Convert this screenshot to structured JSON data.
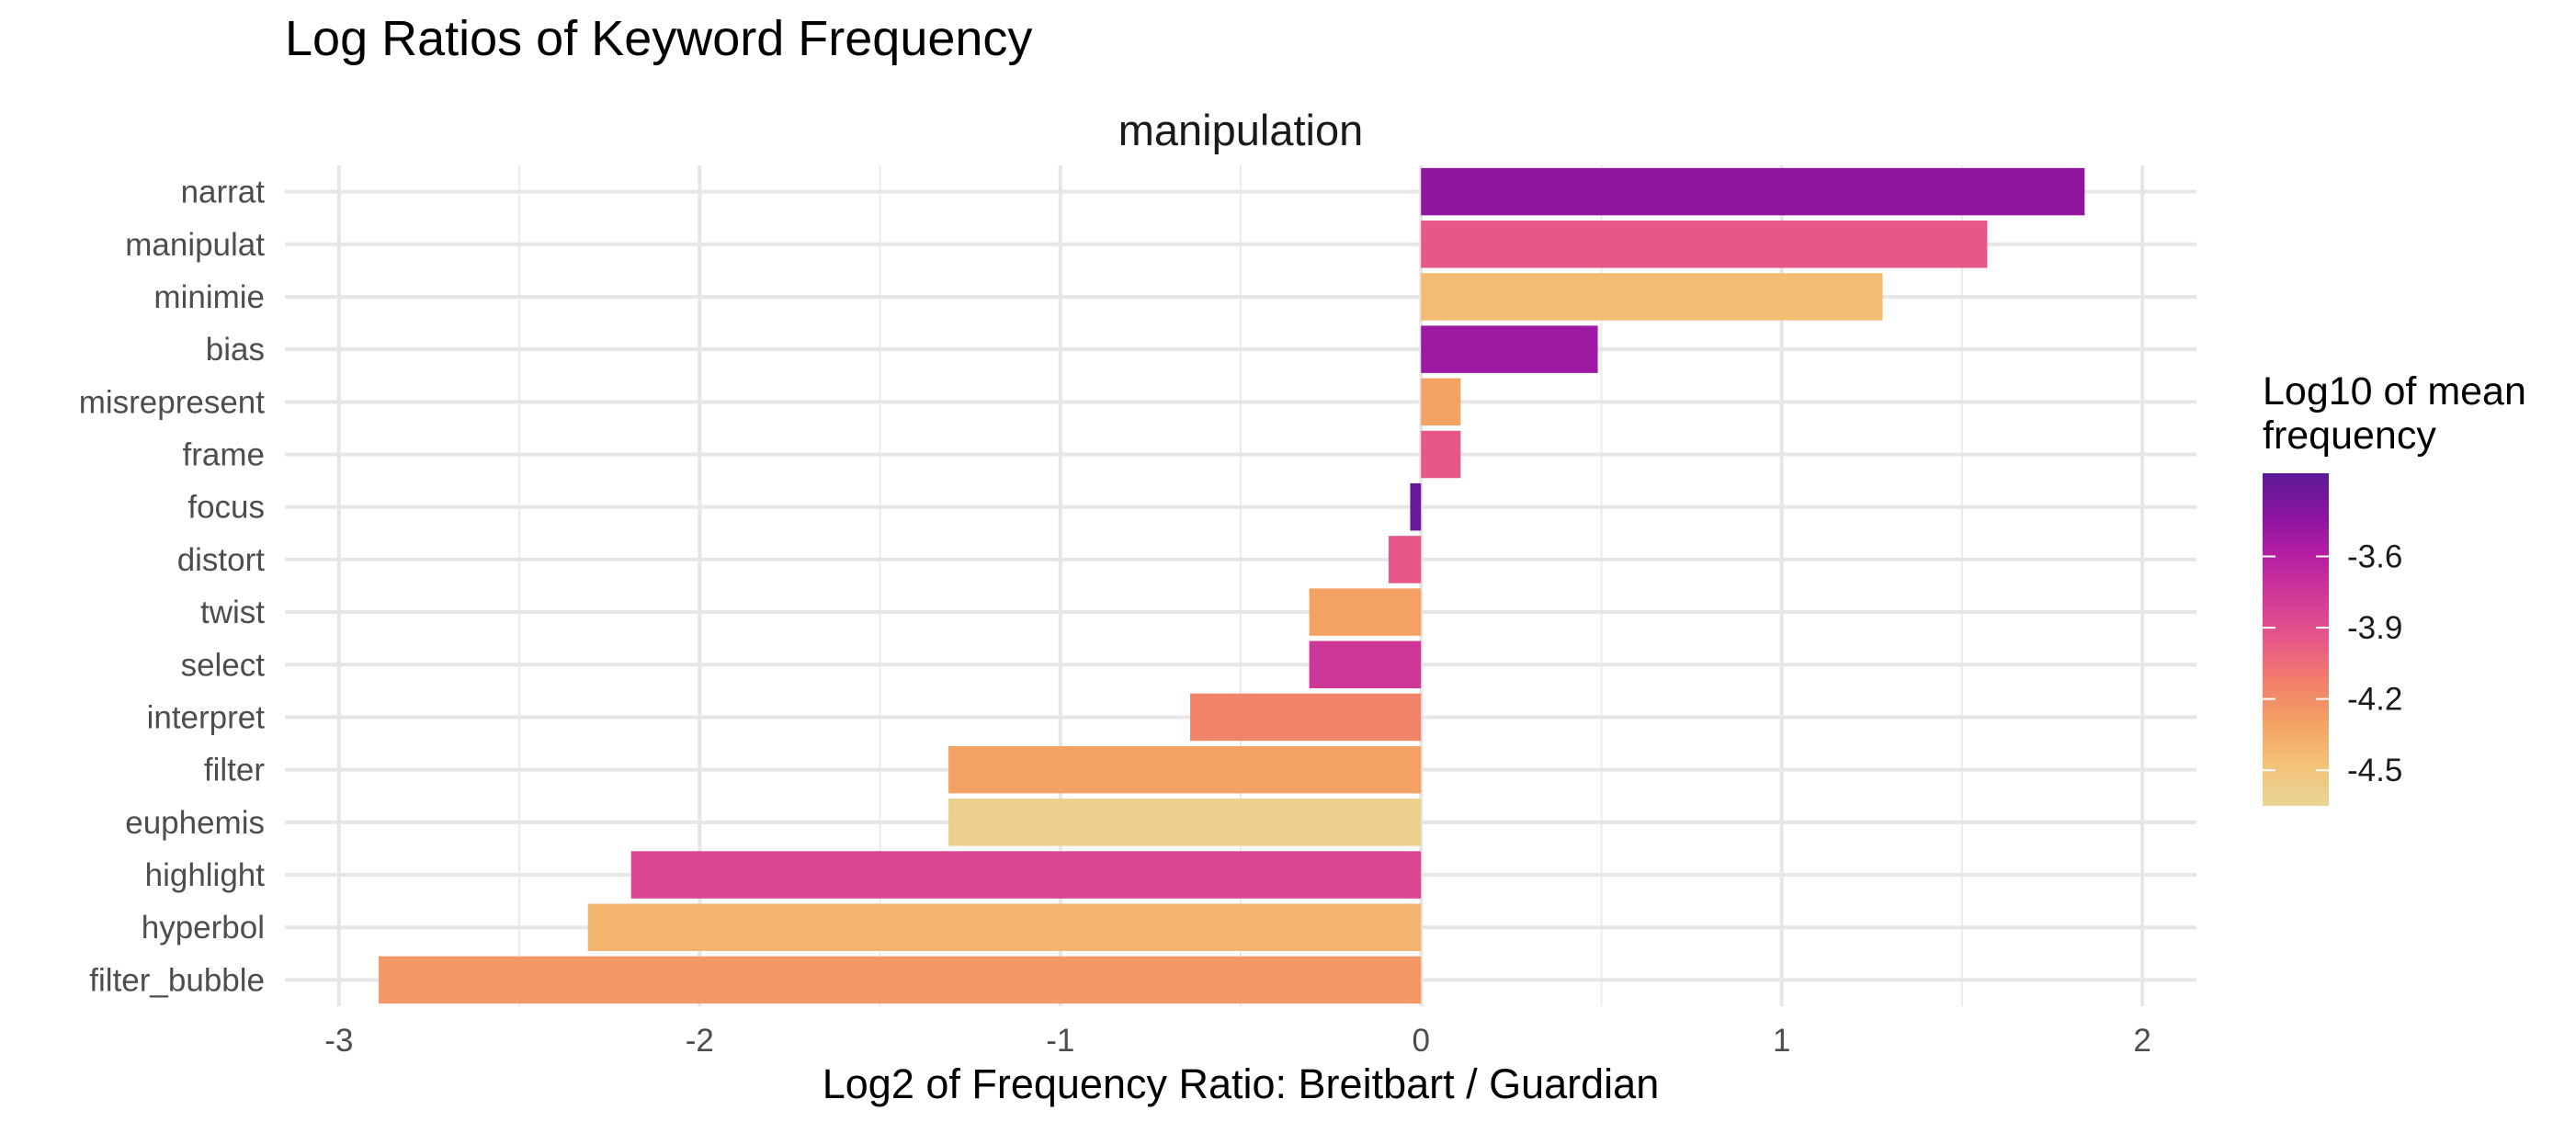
{
  "chart_data": {
    "type": "bar",
    "orientation": "horizontal",
    "title": "Log Ratios of Keyword Frequency",
    "facet_label": "manipulation",
    "xlabel": "Log2 of Frequency Ratio: Breitbart / Guardian",
    "ylabel": "",
    "xlim": [
      -3.15,
      2.15
    ],
    "x_ticks": [
      -3,
      -2,
      -1,
      0,
      1,
      2
    ],
    "x_tick_labels": [
      "-3",
      "-2",
      "-1",
      "0",
      "1",
      "2"
    ],
    "grid": true,
    "categories": [
      "narrat",
      "manipulat",
      "minimie",
      "bias",
      "misrepresent",
      "frame",
      "focus",
      "distort",
      "twist",
      "select",
      "interpret",
      "filter",
      "euphemis",
      "highlight",
      "hyperbol",
      "filter_bubble"
    ],
    "values": [
      1.84,
      1.57,
      1.28,
      0.49,
      0.11,
      0.11,
      -0.03,
      -0.09,
      -0.31,
      -0.31,
      -0.64,
      -1.31,
      -1.31,
      -2.19,
      -2.31,
      -2.89
    ],
    "fill_values": [
      -3.45,
      -3.95,
      -4.45,
      -3.5,
      -4.3,
      -3.95,
      -3.3,
      -3.95,
      -4.3,
      -3.75,
      -4.15,
      -4.3,
      -4.6,
      -3.85,
      -4.4,
      -4.25
    ],
    "legend": {
      "title_lines": [
        "Log10 of mean",
        "frequency"
      ],
      "position": "right",
      "range": [
        -4.65,
        -3.25
      ],
      "ticks": [
        -3.6,
        -3.9,
        -4.2,
        -4.5
      ],
      "tick_labels": [
        "-3.6",
        "-3.9",
        "-4.2",
        "-4.5"
      ],
      "colors": [
        "#e9d597",
        "#f2c276",
        "#f3a264",
        "#f27f6a",
        "#e7578a",
        "#d23a96",
        "#b61fa2",
        "#8a14a0",
        "#5a1b97"
      ]
    }
  }
}
